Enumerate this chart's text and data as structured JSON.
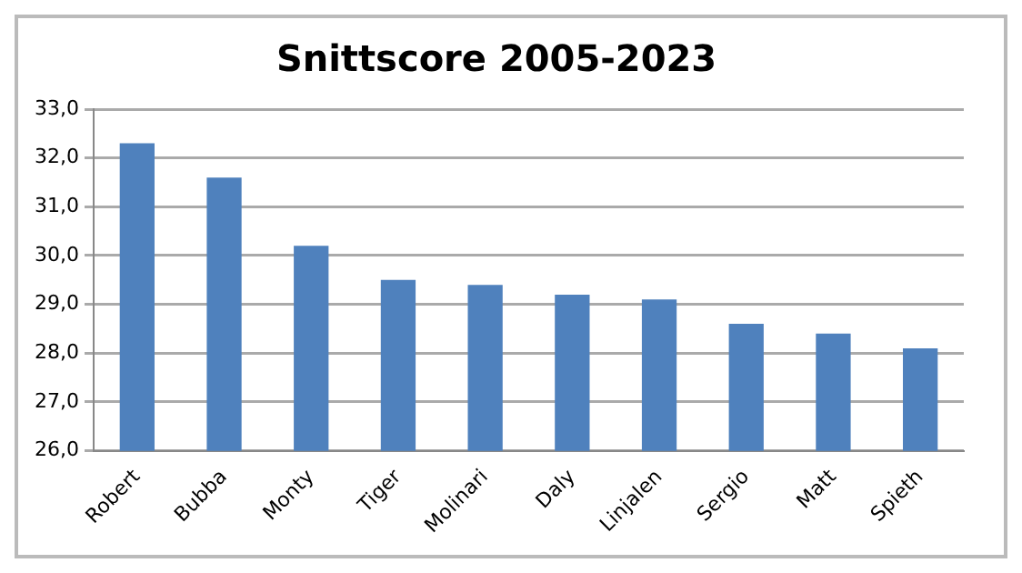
{
  "chart_data": {
    "type": "bar",
    "title": "Snittscore 2005-2023",
    "categories": [
      "Robert",
      "Bubba",
      "Monty",
      "Tiger",
      "Molinari",
      "Daly",
      "Linjalen",
      "Sergio",
      "Matt",
      "Spieth"
    ],
    "values": [
      32.3,
      31.6,
      30.2,
      29.5,
      29.4,
      29.2,
      29.1,
      28.6,
      28.4,
      28.1
    ],
    "color": "#4f81bd",
    "ylim": [
      26,
      33
    ],
    "yticks": [
      {
        "value": 26,
        "label": "26,0"
      },
      {
        "value": 27,
        "label": "27,0"
      },
      {
        "value": 28,
        "label": "28,0"
      },
      {
        "value": 29,
        "label": "29,0"
      },
      {
        "value": 30,
        "label": "30,0"
      },
      {
        "value": 31,
        "label": "31,0"
      },
      {
        "value": 32,
        "label": "32,0"
      },
      {
        "value": 33,
        "label": "33,0"
      }
    ],
    "grid": "y",
    "legend": false
  }
}
